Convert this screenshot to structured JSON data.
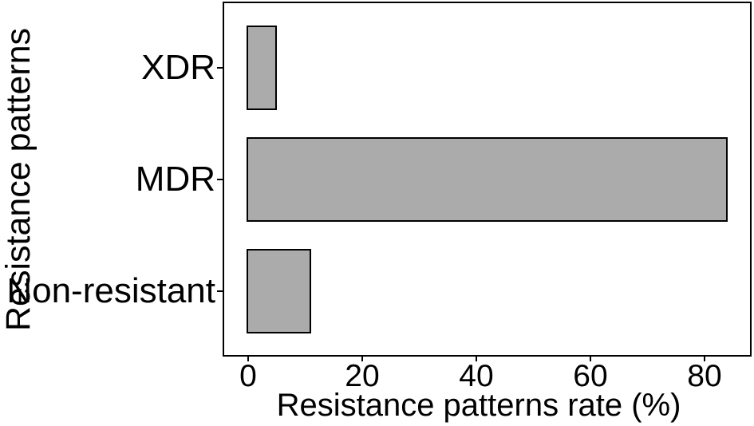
{
  "figure": {
    "background": "#ffffff",
    "text_color": "#000000"
  },
  "chart_data": {
    "type": "bar",
    "orientation": "horizontal",
    "title": "",
    "xlabel": "Resistance patterns rate (%)",
    "ylabel": "Resistance patterns",
    "categories": [
      "XDR",
      "MDR",
      "Non-resistant"
    ],
    "values": [
      5,
      84,
      11
    ],
    "value_unit": "%",
    "xlim": [
      -4,
      88
    ],
    "xticks": [
      0,
      20,
      40,
      60,
      80
    ],
    "xtick_labels": [
      "0",
      "20",
      "40",
      "60",
      "80"
    ],
    "grid": false,
    "legend": false,
    "bar_fill": "#ABABAB",
    "bar_border": "#000000",
    "panel_border": "#000000",
    "axis_text_color": "#000000"
  }
}
